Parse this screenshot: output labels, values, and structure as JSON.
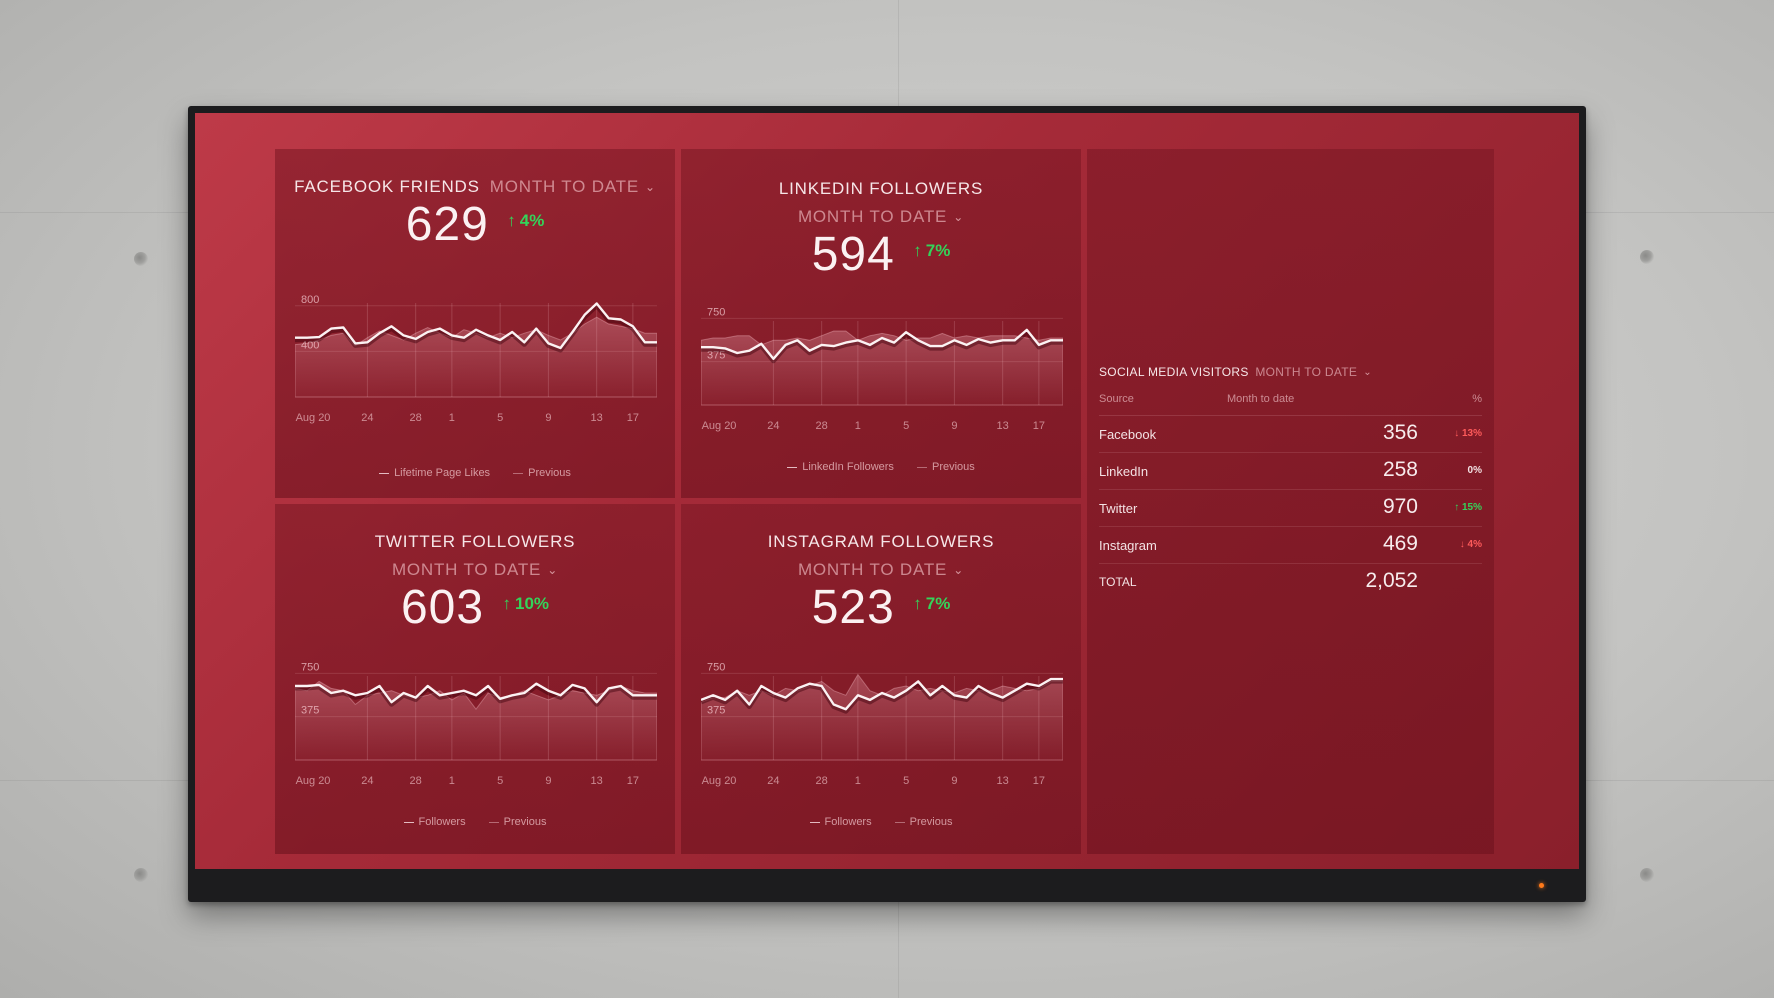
{
  "dashboard": {
    "panels": [
      {
        "id": "facebook",
        "title": "FACEBOOK FRIENDS",
        "period": "MONTH TO DATE",
        "value": "629",
        "delta": "4%",
        "delta_direction": "up",
        "legend_current": "Lifetime Page Likes",
        "legend_previous": "Previous",
        "chart_data": {
          "type": "line",
          "x_ticks": [
            "Aug 20",
            "24",
            "28",
            "1",
            "5",
            "9",
            "13",
            "17"
          ],
          "y_ticks": [
            "800",
            "400"
          ],
          "ylim": [
            0,
            1000
          ],
          "series": [
            {
              "values": [
                520,
                520,
                525,
                600,
                610,
                470,
                480,
                560,
                620,
                540,
                510,
                570,
                600,
                540,
                520,
                590,
                540,
                500,
                570,
                480,
                600,
                470,
                430,
                570,
                720,
                820,
                690,
                680,
                620,
                480,
                480
              ]
            },
            {
              "values": [
                460,
                470,
                500,
                540,
                560,
                450,
                520,
                580,
                540,
                500,
                560,
                610,
                560,
                520,
                590,
                560,
                520,
                560,
                520,
                560,
                590,
                540,
                500,
                560,
                640,
                700,
                640,
                620,
                600,
                560,
                560
              ]
            }
          ]
        }
      },
      {
        "id": "linkedin",
        "title": "LINKEDIN FOLLOWERS",
        "period": "MONTH TO DATE",
        "value": "594",
        "delta": "7%",
        "delta_direction": "up",
        "legend_current": "LinkedIn Followers",
        "legend_previous": "Previous",
        "chart_data": {
          "type": "line",
          "x_ticks": [
            "Aug 20",
            "24",
            "28",
            "1",
            "5",
            "9",
            "13",
            "17"
          ],
          "y_ticks": [
            "750",
            "375"
          ],
          "ylim": [
            0,
            900
          ],
          "series": [
            {
              "values": [
                500,
                500,
                490,
                450,
                470,
                530,
                400,
                520,
                560,
                470,
                520,
                510,
                540,
                560,
                520,
                580,
                540,
                630,
                560,
                510,
                510,
                560,
                520,
                570,
                540,
                560,
                560,
                650,
                520,
                560,
                560
              ]
            },
            {
              "values": [
                560,
                580,
                580,
                600,
                600,
                520,
                560,
                560,
                580,
                560,
                600,
                640,
                640,
                560,
                600,
                620,
                600,
                560,
                580,
                580,
                620,
                580,
                600,
                580,
                600,
                600,
                600,
                580,
                560,
                580,
                580
              ]
            }
          ]
        }
      },
      {
        "id": "twitter",
        "title": "TWITTER FOLLOWERS",
        "period": "MONTH TO DATE",
        "value": "603",
        "delta": "10%",
        "delta_direction": "up",
        "legend_current": "Followers",
        "legend_previous": "Previous",
        "chart_data": {
          "type": "line",
          "x_ticks": [
            "Aug 20",
            "24",
            "28",
            "1",
            "5",
            "9",
            "13",
            "17"
          ],
          "y_ticks": [
            "750",
            "375"
          ],
          "ylim": [
            0,
            900
          ],
          "series": [
            {
              "values": [
                640,
                640,
                650,
                580,
                600,
                560,
                580,
                640,
                500,
                580,
                540,
                640,
                560,
                580,
                600,
                560,
                640,
                530,
                560,
                580,
                660,
                600,
                560,
                650,
                620,
                500,
                620,
                640,
                560,
                560,
                560
              ]
            },
            {
              "values": [
                620,
                600,
                680,
                620,
                600,
                480,
                560,
                580,
                600,
                560,
                540,
                560,
                600,
                520,
                580,
                440,
                580,
                540,
                560,
                600,
                560,
                520,
                560,
                600,
                580,
                560,
                600,
                640,
                600,
                580,
                580
              ]
            }
          ]
        }
      },
      {
        "id": "instagram",
        "title": "INSTAGRAM FOLLOWERS",
        "period": "MONTH TO DATE",
        "value": "523",
        "delta": "7%",
        "delta_direction": "up",
        "legend_current": "Followers",
        "legend_previous": "Previous",
        "chart_data": {
          "type": "line",
          "x_ticks": [
            "Aug 20",
            "24",
            "28",
            "1",
            "5",
            "9",
            "13",
            "17"
          ],
          "y_ticks": [
            "750",
            "375"
          ],
          "ylim": [
            0,
            900
          ],
          "series": [
            {
              "values": [
                520,
                560,
                520,
                600,
                480,
                640,
                580,
                540,
                620,
                660,
                640,
                480,
                440,
                560,
                520,
                580,
                540,
                600,
                680,
                560,
                640,
                560,
                540,
                640,
                580,
                540,
                600,
                660,
                640,
                700,
                700
              ]
            },
            {
              "values": [
                500,
                540,
                540,
                600,
                560,
                600,
                560,
                620,
                600,
                640,
                680,
                600,
                560,
                740,
                600,
                560,
                620,
                640,
                600,
                620,
                600,
                580,
                620,
                600,
                600,
                640,
                620,
                600,
                620,
                680,
                680
              ]
            }
          ]
        }
      }
    ],
    "visitors": {
      "title": "SOCIAL MEDIA VISITORS",
      "period": "MONTH TO DATE",
      "col_source": "Source",
      "col_mtd": "Month to date",
      "col_pct": "%",
      "rows": [
        {
          "source": "Facebook",
          "value": "356",
          "pct": "13%",
          "arrow": "↓",
          "dir": "down"
        },
        {
          "source": "LinkedIn",
          "value": "258",
          "pct": "0%",
          "arrow": "",
          "dir": "flat"
        },
        {
          "source": "Twitter",
          "value": "970",
          "pct": "15%",
          "arrow": "↑",
          "dir": "up"
        },
        {
          "source": "Instagram",
          "value": "469",
          "pct": "4%",
          "arrow": "↓",
          "dir": "down"
        }
      ],
      "total_label": "TOTAL",
      "total_value": "2,052"
    }
  }
}
